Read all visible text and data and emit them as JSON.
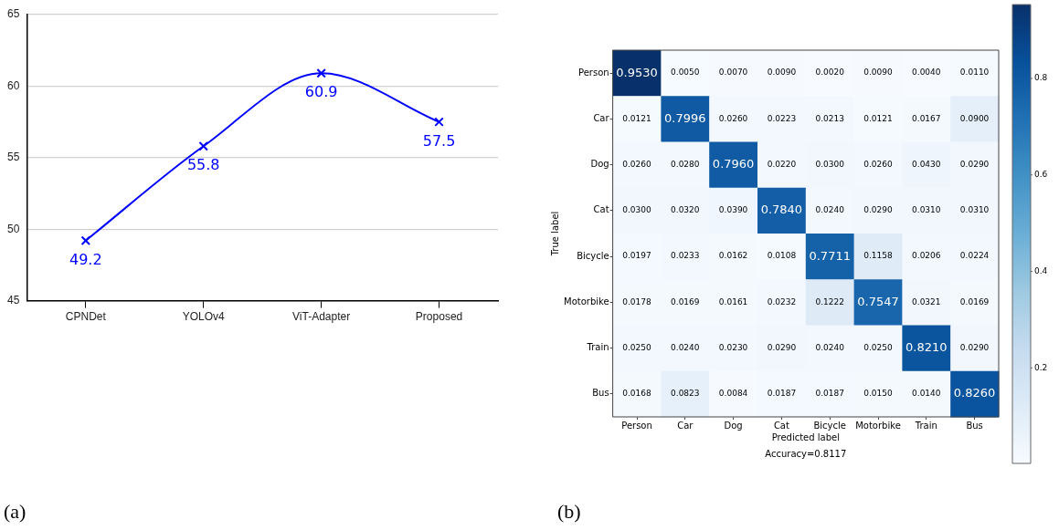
{
  "chart_data": [
    {
      "type": "line",
      "categories": [
        "CPNDet",
        "YOLOv4",
        "ViT-Adapter",
        "Proposed"
      ],
      "series": [
        {
          "color": "#0000ff",
          "values": [
            49.2,
            55.8,
            60.9,
            57.5
          ]
        }
      ],
      "ylim": [
        45,
        65
      ],
      "yticks": [
        45,
        50,
        55,
        60,
        65
      ],
      "grid": "y",
      "legend": false,
      "marker": "cross",
      "line_style": "solid",
      "data_labels": true,
      "annotations": [
        "(a)"
      ]
    },
    {
      "type": "heatmap",
      "xlabel": "Predicted label",
      "ylabel": "True label",
      "categories": [
        "Person",
        "Car",
        "Dog",
        "Cat",
        "Bicycle",
        "Motorbike",
        "Train",
        "Bus"
      ],
      "y_categories": [
        "Person",
        "Car",
        "Dog",
        "Cat",
        "Bicycle",
        "Motorbike",
        "Train",
        "Bus"
      ],
      "cells": [
        [
          0.953,
          0.005,
          0.007,
          0.009,
          0.002,
          0.009,
          0.004,
          0.011
        ],
        [
          0.0121,
          0.7996,
          0.026,
          0.0223,
          0.0213,
          0.0121,
          0.0167,
          0.09
        ],
        [
          0.026,
          0.028,
          0.796,
          0.022,
          0.03,
          0.026,
          0.043,
          0.029
        ],
        [
          0.03,
          0.032,
          0.039,
          0.784,
          0.024,
          0.029,
          0.031,
          0.031
        ],
        [
          0.0197,
          0.0233,
          0.0162,
          0.0108,
          0.7711,
          0.1158,
          0.0206,
          0.0224
        ],
        [
          0.0178,
          0.0169,
          0.0161,
          0.0232,
          0.1222,
          0.7547,
          0.0321,
          0.0169
        ],
        [
          0.025,
          0.024,
          0.023,
          0.029,
          0.024,
          0.025,
          0.821,
          0.029
        ],
        [
          0.0168,
          0.0823,
          0.0084,
          0.0187,
          0.0187,
          0.015,
          0.014,
          0.826
        ]
      ],
      "cell_labels": [
        [
          "0.9530",
          "0.0050",
          "0.0070",
          "0.0090",
          "0.0020",
          "0.0090",
          "0.0040",
          "0.0110"
        ],
        [
          "0.0121",
          "0.7996",
          "0.0260",
          "0.0223",
          "0.0213",
          "0.0121",
          "0.0167",
          "0.0900"
        ],
        [
          "0.0260",
          "0.0280",
          "0.7960",
          "0.0220",
          "0.0300",
          "0.0260",
          "0.0430",
          "0.0290"
        ],
        [
          "0.0300",
          "0.0320",
          "0.0390",
          "0.7840",
          "0.0240",
          "0.0290",
          "0.0310",
          "0.0310"
        ],
        [
          "0.0197",
          "0.0233",
          "0.0162",
          "0.0108",
          "0.7711",
          "0.1158",
          "0.0206",
          "0.0224"
        ],
        [
          "0.0178",
          "0.0169",
          "0.0161",
          "0.0232",
          "0.1222",
          "0.7547",
          "0.0321",
          "0.0169"
        ],
        [
          "0.0250",
          "0.0240",
          "0.0230",
          "0.0290",
          "0.0240",
          "0.0250",
          "0.8210",
          "0.0290"
        ],
        [
          "0.0168",
          "0.0823",
          "0.0084",
          "0.0187",
          "0.0187",
          "0.0150",
          "0.0140",
          "0.8260"
        ]
      ],
      "clim": [
        0.002,
        0.953
      ],
      "cticks": [
        0.2,
        0.4,
        0.6,
        0.8
      ],
      "annotations": [
        "Accuracy=0.8117",
        "(b)"
      ]
    }
  ]
}
